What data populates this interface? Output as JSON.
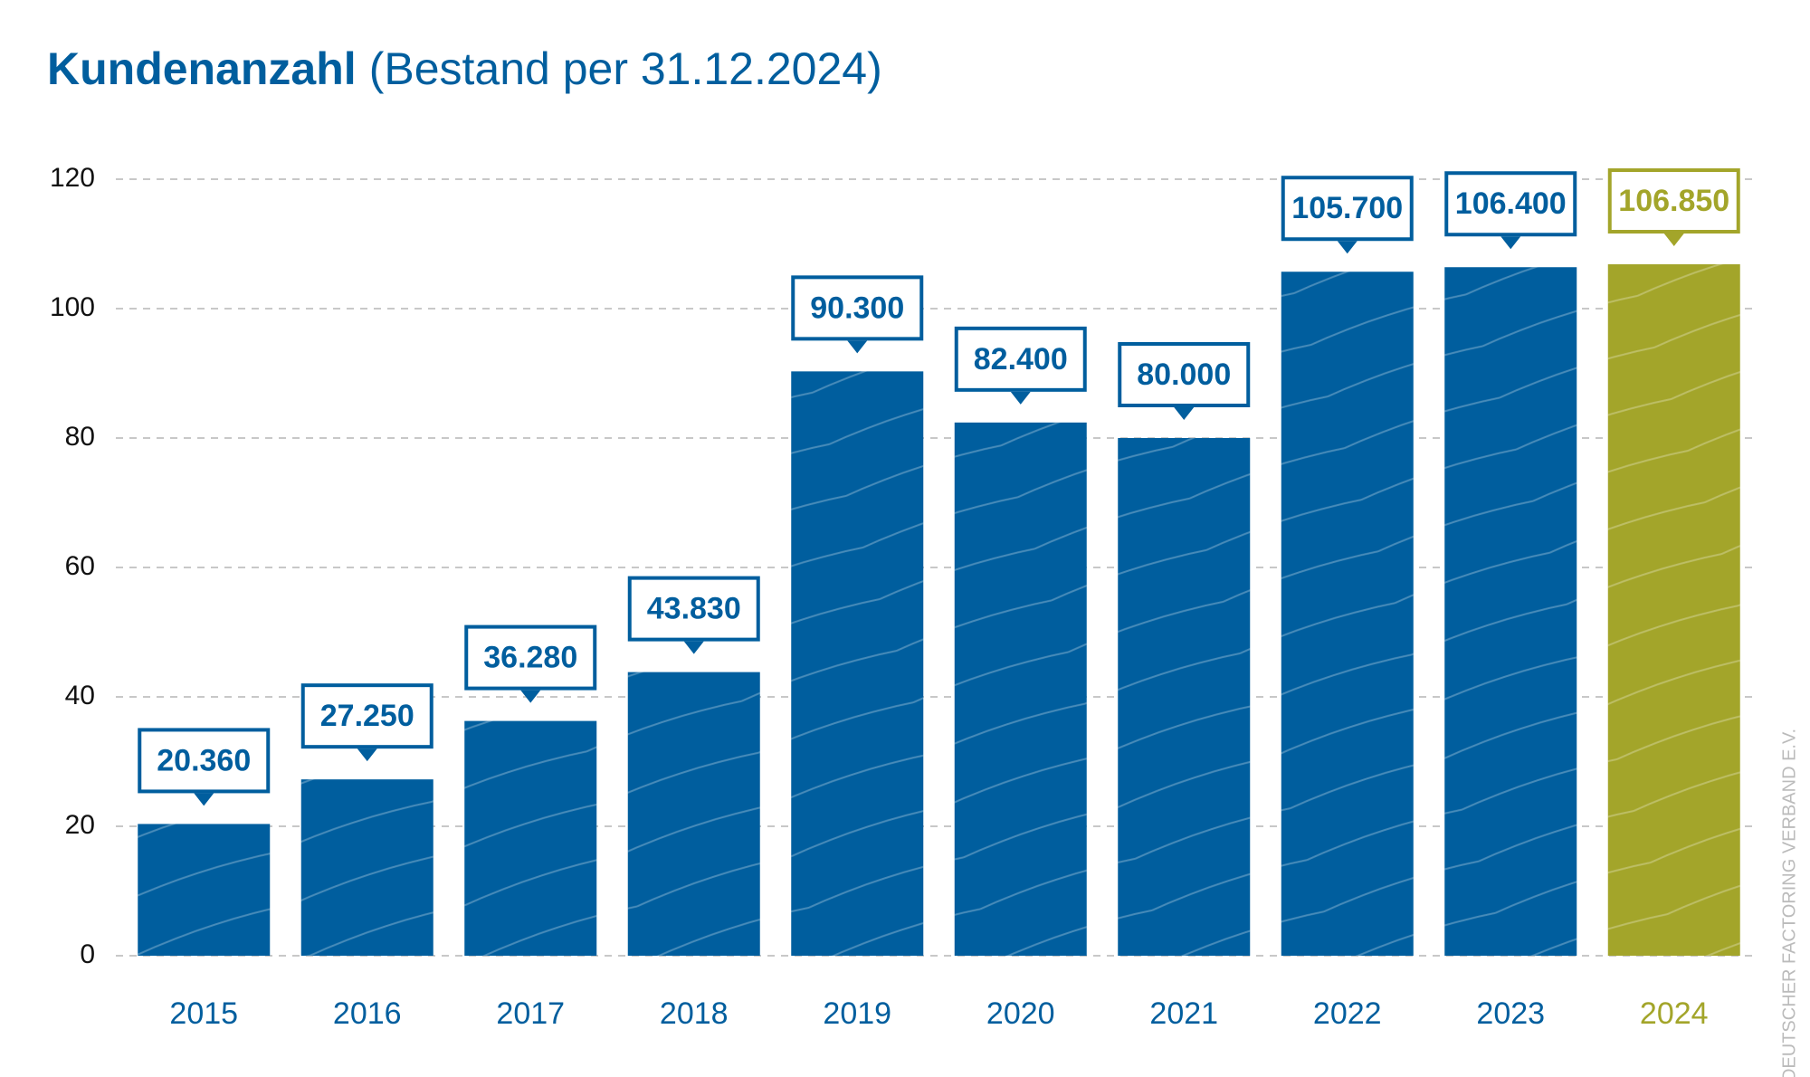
{
  "chart_data": {
    "type": "bar",
    "title": "Kundenanzahl",
    "subtitle": "(Bestand per 31.12.2024)",
    "categories": [
      "2015",
      "2016",
      "2017",
      "2018",
      "2019",
      "2020",
      "2021",
      "2022",
      "2023",
      "2024"
    ],
    "values": [
      20.36,
      27.25,
      36.28,
      43.83,
      90.3,
      82.4,
      80.0,
      105.7,
      106.4,
      106.85
    ],
    "value_labels": [
      "20.360",
      "27.250",
      "36.280",
      "43.830",
      "90.300",
      "82.400",
      "80.000",
      "105.700",
      "106.400",
      "106.850"
    ],
    "colors": [
      "#005e9e",
      "#005e9e",
      "#005e9e",
      "#005e9e",
      "#005e9e",
      "#005e9e",
      "#005e9e",
      "#005e9e",
      "#005e9e",
      "#a3a52a"
    ],
    "ylim": [
      0,
      120
    ],
    "yticks": [
      0,
      20,
      40,
      60,
      80,
      100,
      120
    ],
    "grid": true,
    "source": "DEUTSCHER FACTORING VERBAND E.V."
  }
}
